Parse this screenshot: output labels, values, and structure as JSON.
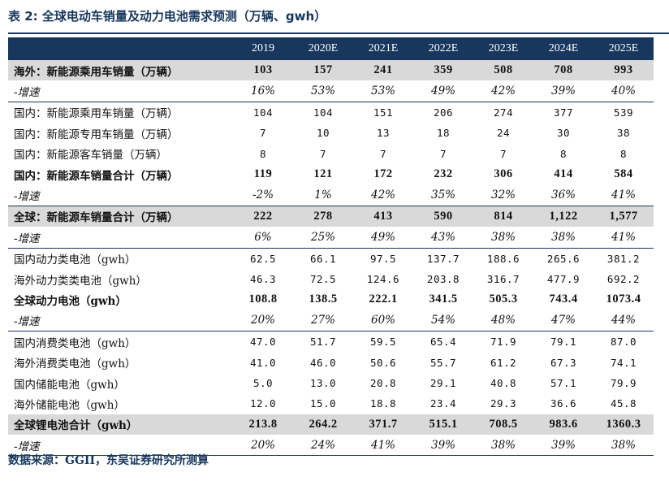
{
  "title": "表 2:  全球电动车销量及动力电池需求预测（万辆、gwh）",
  "columns": [
    "",
    "2019",
    "2020E",
    "2021E",
    "2022E",
    "2023E",
    "2024E",
    "2025E"
  ],
  "rows": [
    {
      "label": "海外：新能源乘用车销量（万辆）",
      "values": [
        "103",
        "157",
        "241",
        "359",
        "508",
        "708",
        "993"
      ],
      "style": "bold gray sep"
    },
    {
      "label": "-增速",
      "values": [
        "16%",
        "53%",
        "53%",
        "49%",
        "42%",
        "39%",
        "40%"
      ],
      "style": "growth"
    },
    {
      "label": "国内：新能源乘用车销量（万辆）",
      "values": [
        "104",
        "104",
        "151",
        "206",
        "274",
        "377",
        "539"
      ],
      "style": "sep"
    },
    {
      "label": "国内：新能源专用车销量（万辆）",
      "values": [
        "7",
        "10",
        "13",
        "18",
        "24",
        "30",
        "38"
      ],
      "style": ""
    },
    {
      "label": "国内：新能源客车销量（万辆）",
      "values": [
        "8",
        "7",
        "7",
        "7",
        "7",
        "8",
        "8"
      ],
      "style": ""
    },
    {
      "label": "国内：新能源车销量合计（万辆）",
      "values": [
        "119",
        "121",
        "172",
        "232",
        "306",
        "414",
        "584"
      ],
      "style": "bold"
    },
    {
      "label": "-增速",
      "values": [
        "-2%",
        "1%",
        "42%",
        "35%",
        "32%",
        "36%",
        "41%"
      ],
      "style": "growth"
    },
    {
      "label": "全球：新能源车销量合计（万辆）",
      "values": [
        "222",
        "278",
        "413",
        "590",
        "814",
        "1,122",
        "1,577"
      ],
      "style": "bold gray sep"
    },
    {
      "label": "-增速",
      "values": [
        "6%",
        "25%",
        "49%",
        "43%",
        "38%",
        "38%",
        "41%"
      ],
      "style": "growth"
    },
    {
      "label": "国内动力类电池（gwh）",
      "values": [
        "62.5",
        "66.1",
        "97.5",
        "137.7",
        "188.6",
        "265.6",
        "381.2"
      ],
      "style": "sep"
    },
    {
      "label": "海外动力类类电池（gwh）",
      "values": [
        "46.3",
        "72.5",
        "124.6",
        "203.8",
        "316.7",
        "477.9",
        "692.2"
      ],
      "style": ""
    },
    {
      "label": "全球动力电池（gwh）",
      "values": [
        "108.8",
        "138.5",
        "222.1",
        "341.5",
        "505.3",
        "743.4",
        "1073.4"
      ],
      "style": "bold"
    },
    {
      "label": "-增速",
      "values": [
        "20%",
        "27%",
        "60%",
        "54%",
        "48%",
        "47%",
        "44%"
      ],
      "style": "growth"
    },
    {
      "label": "国内消费类电池（gwh）",
      "values": [
        "47.0",
        "51.7",
        "59.5",
        "65.4",
        "71.9",
        "79.1",
        "87.0"
      ],
      "style": "sep"
    },
    {
      "label": "海外消费类电池（gwh）",
      "values": [
        "41.0",
        "46.0",
        "50.6",
        "55.7",
        "61.2",
        "67.3",
        "74.1"
      ],
      "style": ""
    },
    {
      "label": "国内储能电池（gwh）",
      "values": [
        "5.0",
        "13.0",
        "20.8",
        "29.1",
        "40.8",
        "57.1",
        "79.9"
      ],
      "style": ""
    },
    {
      "label": "海外储能电池（gwh）",
      "values": [
        "12.0",
        "15.0",
        "18.8",
        "23.4",
        "29.3",
        "36.6",
        "45.8"
      ],
      "style": ""
    },
    {
      "label": "全球锂电池合计（gwh）",
      "values": [
        "213.8",
        "264.2",
        "371.7",
        "515.1",
        "708.5",
        "983.6",
        "1360.3"
      ],
      "style": "bold gray"
    },
    {
      "label": "-增速",
      "values": [
        "20%",
        "24%",
        "41%",
        "39%",
        "38%",
        "39%",
        "38%"
      ],
      "style": "growth last"
    }
  ],
  "source": "数据来源：GGII，东吴证券研究所测算",
  "colors": {
    "header_bg": "#17375e",
    "highlight_row": "#d9d9d9",
    "title_text": "#17375e"
  }
}
